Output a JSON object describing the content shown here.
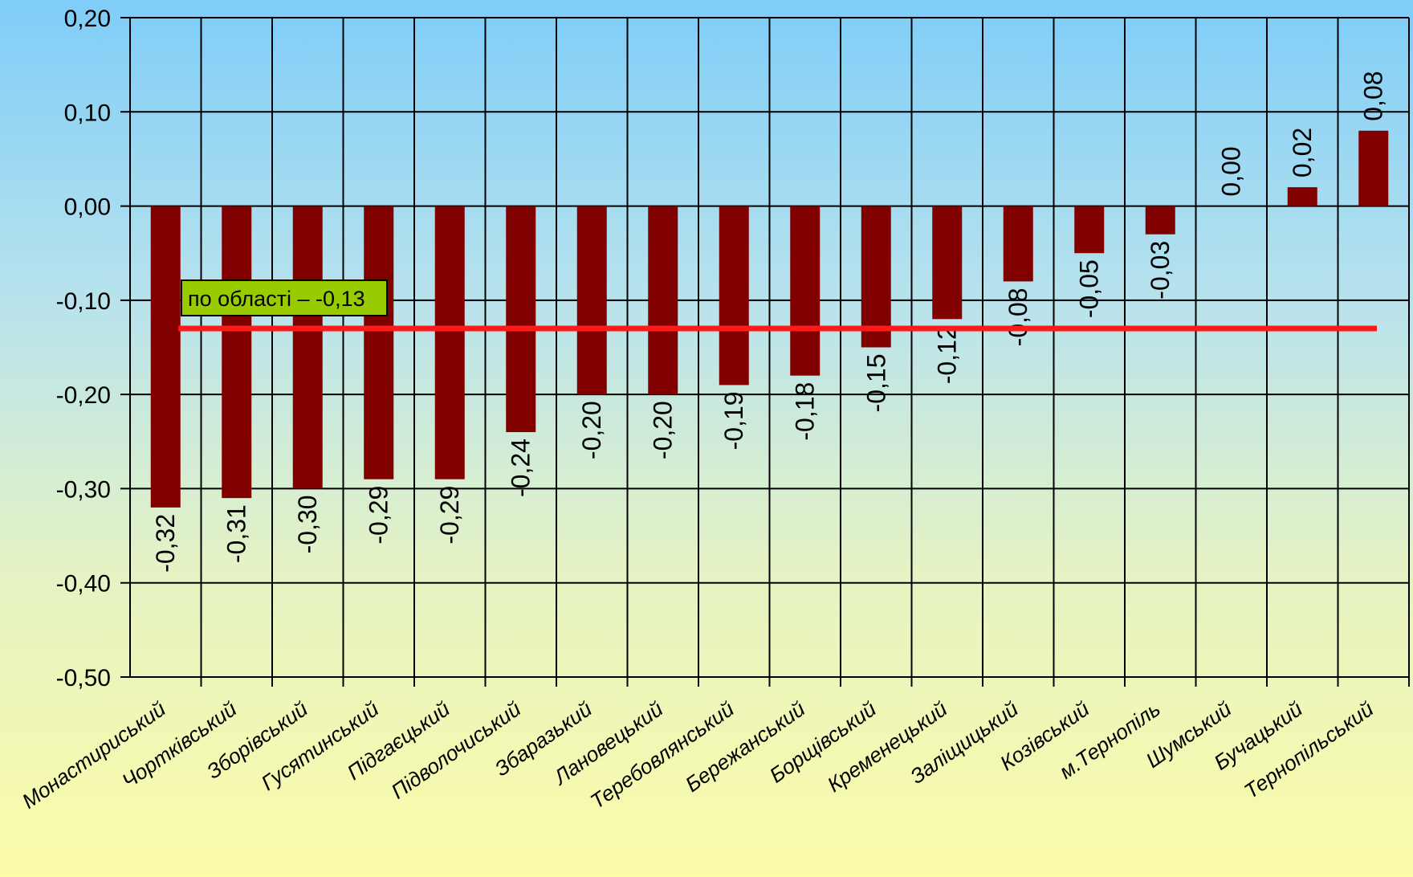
{
  "chart_data": {
    "type": "bar",
    "categories": [
      "Монастириський",
      "Чортківський",
      "Зборівський",
      "Гусятинський",
      "Підгаєцький",
      "Підволочиський",
      "Збаразький",
      "Лановецький",
      "Теребовлянський",
      "Бережанський",
      "Борщівський",
      "Кременецький",
      "Заліщицький",
      "Козівський",
      "м.Тернопіль",
      "Шумський",
      "Бучацький",
      "Тернопільський"
    ],
    "values": [
      -0.32,
      -0.31,
      -0.3,
      -0.29,
      -0.29,
      -0.24,
      -0.2,
      -0.2,
      -0.19,
      -0.18,
      -0.15,
      -0.12,
      -0.08,
      -0.05,
      -0.03,
      0.0,
      0.02,
      0.08
    ],
    "value_labels": [
      "-0,32",
      "-0,31",
      "-0,30",
      "-0,29",
      "-0,29",
      "-0,24",
      "-0,20",
      "-0,20",
      "-0,19",
      "-0,18",
      "-0,15",
      "-0,12",
      "-0,08",
      "-0,05",
      "-0,03",
      "0,00",
      "0,02",
      "0,08"
    ],
    "ylim": [
      -0.5,
      0.2
    ],
    "yticks": [
      0.2,
      0.1,
      0.0,
      -0.1,
      -0.2,
      -0.3,
      -0.4,
      -0.5
    ],
    "ytick_labels": [
      "0,20",
      "0,10",
      "0,00",
      "-0,10",
      "-0,20",
      "-0,30",
      "-0,40",
      "-0,50"
    ],
    "grid": true,
    "reference_line": {
      "value": -0.13,
      "label": "по області – -0,13",
      "color": "#ff1a1a"
    },
    "colors": {
      "bar": "#800000",
      "grid": "#000000",
      "label_box": "#99cc00"
    }
  }
}
